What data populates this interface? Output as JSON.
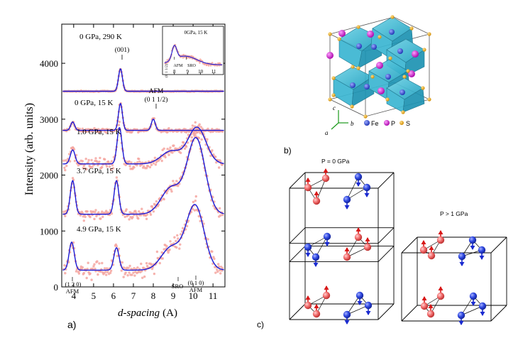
{
  "panel_a": {
    "label": "a)",
    "xlabel_italic": "d-spacing",
    "xlabel_unit": "(A)",
    "ylabel": "Intensity (arb. units)",
    "x_ticks": [
      "4",
      "5",
      "6",
      "7",
      "8",
      "9",
      "10",
      "11"
    ],
    "y_ticks": [
      "0",
      "1000",
      "2000",
      "3000",
      "4000"
    ],
    "curve_labels": [
      "0 GPa, 290 K",
      "0 GPa, 15 K",
      "1.0 GPa, 15 K",
      "3.7 GPa, 15 K",
      "4.9 GPa, 15 K"
    ],
    "peak_001": "(001)",
    "afm_label": "AFM",
    "afm_index": "(0 1 1/2)",
    "bottom_120": "(1 2 0)",
    "bottom_afm_left": "AFM",
    "bottom_sro": "SRO",
    "bottom_010": "(0 1 0)",
    "bottom_afm_right": "AFM",
    "inset": {
      "title": "0GPa, 15 K",
      "x_ticks": [
        "8",
        "9",
        "10",
        "11"
      ],
      "peak_index": "(0 1 1/2)",
      "afm": "AFM",
      "sro": "SRO"
    }
  },
  "panel_b": {
    "label": "b)",
    "axis_c": "c",
    "axis_b": "b",
    "axis_a": "a",
    "legend": [
      "Fe",
      "P",
      "S"
    ]
  },
  "panel_c": {
    "label": "c)",
    "title_left": "P = 0 GPa",
    "title_right": "P > 1 GPa"
  },
  "chart_data": {
    "type": "line",
    "xlabel": "d-spacing (A)",
    "ylabel": "Intensity (arb. units)",
    "xlim": [
      3.4,
      11.6
    ],
    "ylim": [
      0,
      4700
    ],
    "series": [
      {
        "name": "0 GPa, 290 K",
        "baseline": 3500,
        "peaks": [
          {
            "x": 6.35,
            "height": 400
          }
        ]
      },
      {
        "name": "0 GPa, 15 K",
        "baseline": 2800,
        "peaks": [
          {
            "x": 3.95,
            "height": 150
          },
          {
            "x": 6.35,
            "height": 480
          },
          {
            "x": 8.0,
            "height": 200
          }
        ]
      },
      {
        "name": "1.0 GPa, 15 K",
        "baseline": 2200,
        "peaks": [
          {
            "x": 3.95,
            "height": 250
          },
          {
            "x": 6.3,
            "height": 650
          },
          {
            "x": 10.2,
            "height": 650
          }
        ]
      },
      {
        "name": "3.7 GPa, 15 K",
        "baseline": 1300,
        "peaks": [
          {
            "x": 3.95,
            "height": 600
          },
          {
            "x": 6.15,
            "height": 600
          },
          {
            "x": 10.15,
            "height": 1350
          }
        ]
      },
      {
        "name": "4.9 GPa, 15 K",
        "baseline": 300,
        "peaks": [
          {
            "x": 3.9,
            "height": 500
          },
          {
            "x": 6.15,
            "height": 400
          },
          {
            "x": 10.1,
            "height": 1150
          }
        ]
      }
    ]
  }
}
